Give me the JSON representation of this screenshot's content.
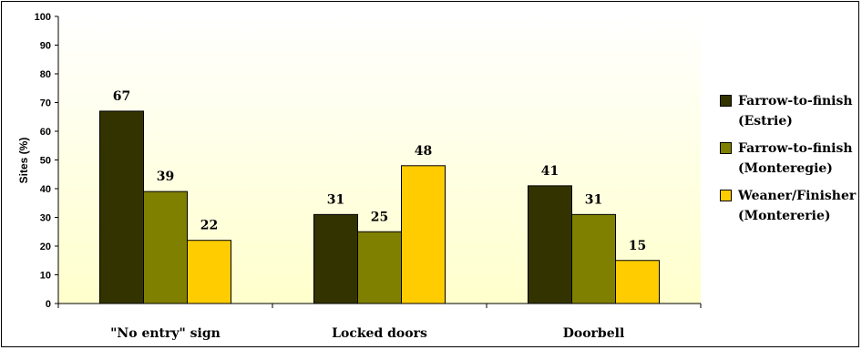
{
  "chart_data": {
    "type": "bar",
    "title": "",
    "xlabel": "",
    "ylabel": "Sites (%)",
    "ylim": [
      0,
      100
    ],
    "yticks": [
      "0",
      "10",
      "20",
      "30",
      "40",
      "50",
      "60",
      "70",
      "80",
      "90",
      "100"
    ],
    "categories": [
      "\"No entry\" sign",
      "Locked doors",
      "Doorbell"
    ],
    "series": [
      {
        "name": "Farrow-to-finish (Estrie)",
        "values": [
          67,
          31,
          41
        ],
        "color": "#333300"
      },
      {
        "name": "Farrow-to-finish (Monteregie)",
        "values": [
          39,
          25,
          31
        ],
        "color": "#808000"
      },
      {
        "name": "Weaner/Finisher (Montererie)",
        "values": [
          22,
          48,
          15
        ],
        "color": "#FFCC00"
      }
    ],
    "legend_position": "right",
    "grid": false,
    "plot_background": "gradient white to pale yellow"
  },
  "legend": {
    "items": [
      {
        "line1": "Farrow-to-finish",
        "line2": "(Estrie)"
      },
      {
        "line1": "Farrow-to-finish",
        "line2": "(Monteregie)"
      },
      {
        "line1": "Weaner/Finisher",
        "line2": "(Montererie)"
      }
    ]
  }
}
